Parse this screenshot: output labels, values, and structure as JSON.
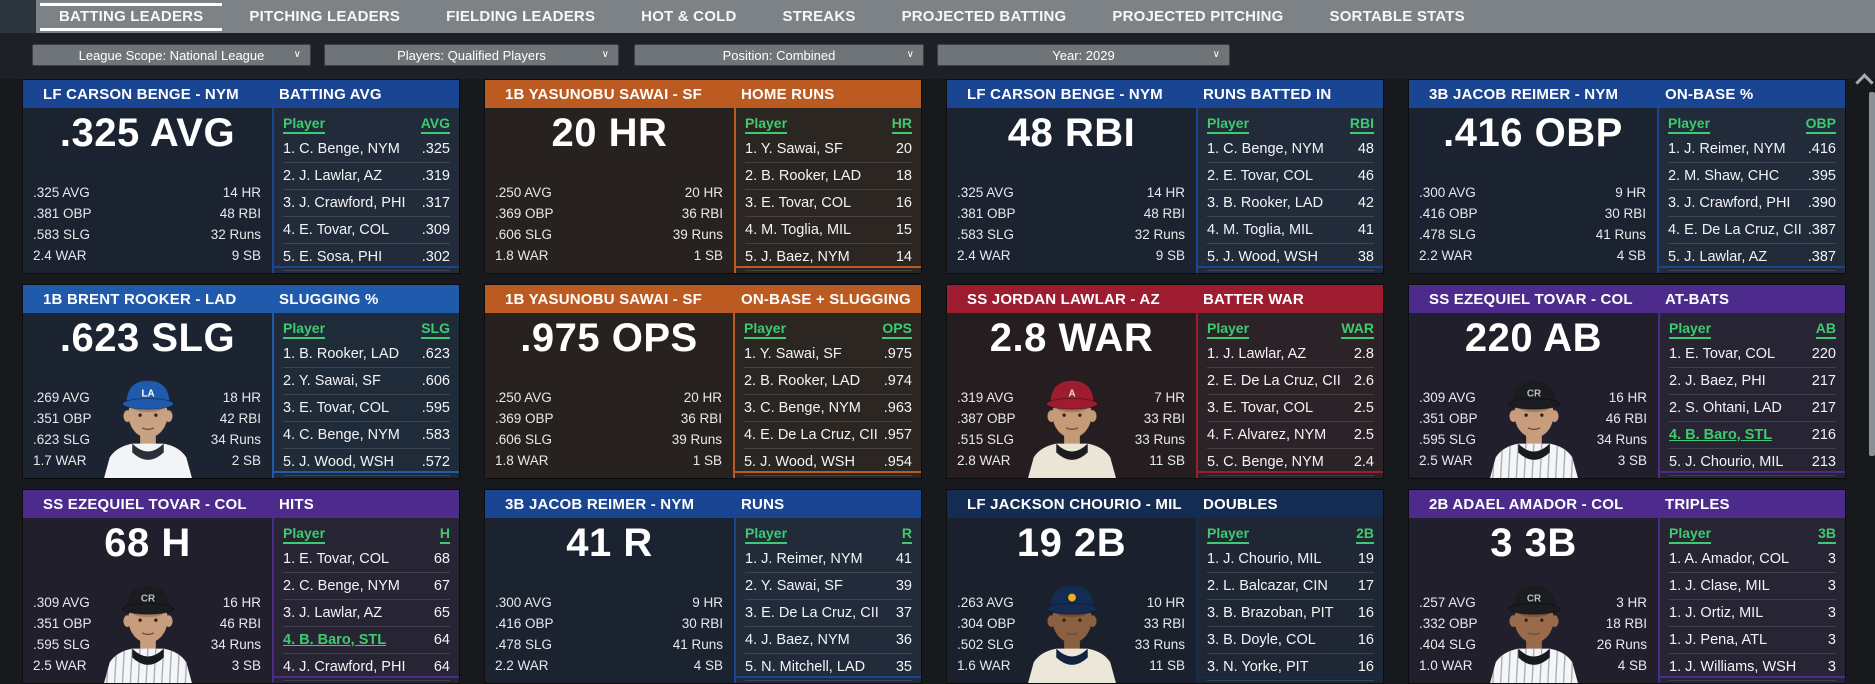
{
  "nav": {
    "tabs": [
      {
        "label": "BATTING LEADERS",
        "active": true
      },
      {
        "label": "PITCHING LEADERS",
        "active": false
      },
      {
        "label": "FIELDING LEADERS",
        "active": false
      },
      {
        "label": "HOT & COLD",
        "active": false
      },
      {
        "label": "STREAKS",
        "active": false
      },
      {
        "label": "PROJECTED BATTING",
        "active": false
      },
      {
        "label": "PROJECTED PITCHING",
        "active": false
      },
      {
        "label": "SORTABLE STATS",
        "active": false
      }
    ]
  },
  "filters": [
    {
      "label": "League Scope: National League"
    },
    {
      "label": "Players: Qualified Players"
    },
    {
      "label": "Position: Combined"
    },
    {
      "label": "Year: 2029"
    }
  ],
  "icons": {
    "dropdown_chevron": "∨"
  },
  "colors": {
    "highlight_green": "#3ecb70"
  },
  "list_player_label": "Player",
  "cards": [
    {
      "player": "LF CARSON BENGE - NYM",
      "category": "BATTING AVG",
      "big": ".325 AVG",
      "abbr": "AVG",
      "accent": "#1a4593",
      "body_bg": "#1b2330",
      "list_bg": "#212b39",
      "stats_left": [
        ".325 AVG",
        ".381 OBP",
        ".583 SLG",
        "2.4 WAR"
      ],
      "stats_right": [
        "14 HR",
        "48 RBI",
        "32 Runs",
        "9 SB"
      ],
      "leaders": [
        {
          "name": "1. C. Benge, NYM",
          "value": ".325"
        },
        {
          "name": "2. J. Lawlar, AZ",
          "value": ".319"
        },
        {
          "name": "3. J. Crawford, PHI",
          "value": ".317"
        },
        {
          "name": "4. E. Tovar, COL",
          "value": ".309"
        },
        {
          "name": "5. E. Sosa, PHI",
          "value": ".302"
        }
      ],
      "photo": null
    },
    {
      "player": "1B YASUNOBU SAWAI - SF",
      "category": "HOME RUNS",
      "big": "20 HR",
      "abbr": "HR",
      "accent": "#bc5b21",
      "body_bg": "#272220",
      "list_bg": "#2c2623",
      "stats_left": [
        ".250 AVG",
        ".369 OBP",
        ".606 SLG",
        "1.8 WAR"
      ],
      "stats_right": [
        "20 HR",
        "36 RBI",
        "39 Runs",
        "1 SB"
      ],
      "leaders": [
        {
          "name": "1. Y. Sawai, SF",
          "value": "20"
        },
        {
          "name": "2. B. Rooker, LAD",
          "value": "18"
        },
        {
          "name": "3. E. Tovar, COL",
          "value": "16"
        },
        {
          "name": "4. M. Toglia, MIL",
          "value": "15"
        },
        {
          "name": "5. J. Baez, NYM",
          "value": "14"
        }
      ],
      "photo": null
    },
    {
      "player": "LF CARSON BENGE - NYM",
      "category": "RUNS BATTED IN",
      "big": "48 RBI",
      "abbr": "RBI",
      "accent": "#1a4593",
      "body_bg": "#1b2330",
      "list_bg": "#212b39",
      "stats_left": [
        ".325 AVG",
        ".381 OBP",
        ".583 SLG",
        "2.4 WAR"
      ],
      "stats_right": [
        "14 HR",
        "48 RBI",
        "32 Runs",
        "9 SB"
      ],
      "leaders": [
        {
          "name": "1. C. Benge, NYM",
          "value": "48"
        },
        {
          "name": "2. E. Tovar, COL",
          "value": "46"
        },
        {
          "name": "3. B. Rooker, LAD",
          "value": "42"
        },
        {
          "name": "4. M. Toglia, MIL",
          "value": "41"
        },
        {
          "name": "5. J. Wood, WSH",
          "value": "38"
        }
      ],
      "photo": null
    },
    {
      "player": "3B JACOB REIMER - NYM",
      "category": "ON-BASE %",
      "big": ".416 OBP",
      "abbr": "OBP",
      "accent": "#1a4593",
      "body_bg": "#1b2330",
      "list_bg": "#212b39",
      "stats_left": [
        ".300 AVG",
        ".416 OBP",
        ".478 SLG",
        "2.2 WAR"
      ],
      "stats_right": [
        "9 HR",
        "30 RBI",
        "41 Runs",
        "4 SB"
      ],
      "leaders": [
        {
          "name": "1. J. Reimer, NYM",
          "value": ".416"
        },
        {
          "name": "2. M. Shaw, CHC",
          "value": ".395"
        },
        {
          "name": "3. J. Crawford, PHI",
          "value": ".390"
        },
        {
          "name": "4. E. De La Cruz, CII",
          "value": ".387"
        },
        {
          "name": "5. J. Lawlar, AZ",
          "value": ".387"
        }
      ],
      "photo": null
    },
    {
      "player": "1B BRENT ROOKER - LAD",
      "category": "SLUGGING %",
      "big": ".623 SLG",
      "abbr": "SLG",
      "accent": "#1f5aac",
      "body_bg": "#1b2430",
      "list_bg": "#202b39",
      "stats_left": [
        ".269 AVG",
        ".351 OBP",
        ".623 SLG",
        "1.7 WAR"
      ],
      "stats_right": [
        "18 HR",
        "42 RBI",
        "34 Runs",
        "2 SB"
      ],
      "leaders": [
        {
          "name": "1. B. Rooker, LAD",
          "value": ".623"
        },
        {
          "name": "2. Y. Sawai, SF",
          "value": ".606"
        },
        {
          "name": "3. E. Tovar, COL",
          "value": ".595"
        },
        {
          "name": "4. C. Benge, NYM",
          "value": ".583"
        },
        {
          "name": "5. J. Wood, WSH",
          "value": ".572"
        }
      ],
      "photo": {
        "cap": "#1f5aac",
        "jersey": "#f3f4f6",
        "undershirt": "#2a3038",
        "skin": "#c9a183",
        "pinstripes": false,
        "logo_text": "LA",
        "logo_color": "#ffffff"
      }
    },
    {
      "player": "1B YASUNOBU SAWAI - SF",
      "category": "ON-BASE + SLUGGING",
      "big": ".975 OPS",
      "abbr": "OPS",
      "accent": "#bc5b21",
      "body_bg": "#272220",
      "list_bg": "#2c2623",
      "stats_left": [
        ".250 AVG",
        ".369 OBP",
        ".606 SLG",
        "1.8 WAR"
      ],
      "stats_right": [
        "20 HR",
        "36 RBI",
        "39 Runs",
        "1 SB"
      ],
      "leaders": [
        {
          "name": "1. Y. Sawai, SF",
          "value": ".975"
        },
        {
          "name": "2. B. Rooker, LAD",
          "value": ".974"
        },
        {
          "name": "3. C. Benge, NYM",
          "value": ".963"
        },
        {
          "name": "4. E. De La Cruz, CII",
          "value": ".957"
        },
        {
          "name": "5. J. Wood, WSH",
          "value": ".954"
        }
      ],
      "photo": null
    },
    {
      "player": "SS JORDAN LAWLAR - AZ",
      "category": "BATTER WAR",
      "big": "2.8 WAR",
      "abbr": "WAR",
      "accent": "#9d1c2f",
      "body_bg": "#251d20",
      "list_bg": "#2b2327",
      "stats_left": [
        ".319 AVG",
        ".387 OBP",
        ".515 SLG",
        "2.8 WAR"
      ],
      "stats_right": [
        "7 HR",
        "33 RBI",
        "33 Runs",
        "11 SB"
      ],
      "leaders": [
        {
          "name": "1. J. Lawlar, AZ",
          "value": "2.8"
        },
        {
          "name": "2. E. De La Cruz, CII",
          "value": "2.6"
        },
        {
          "name": "3. E. Tovar, COL",
          "value": "2.5"
        },
        {
          "name": "4. F. Alvarez, NYM",
          "value": "2.5"
        },
        {
          "name": "5. C. Benge, NYM",
          "value": "2.4"
        }
      ],
      "photo": {
        "cap": "#9d1c2f",
        "jersey": "#ece4d4",
        "undershirt": "#1c1c1e",
        "skin": "#c49a77",
        "pinstripes": false,
        "logo_text": "A",
        "logo_color": "#e8e2d8"
      }
    },
    {
      "player": "SS EZEQUIEL TOVAR - COL",
      "category": "AT-BATS",
      "big": "220 AB",
      "abbr": "AB",
      "accent": "#4c2b8c",
      "body_bg": "#221f2c",
      "list_bg": "#272434",
      "stats_left": [
        ".309 AVG",
        ".351 OBP",
        ".595 SLG",
        "2.5 WAR"
      ],
      "stats_right": [
        "16 HR",
        "46 RBI",
        "34 Runs",
        "3 SB"
      ],
      "leaders": [
        {
          "name": "1. E. Tovar, COL",
          "value": "220"
        },
        {
          "name": "2. J. Baez, PHI",
          "value": "217"
        },
        {
          "name": "2. S. Ohtani, LAD",
          "value": "217"
        },
        {
          "name": "4. B. Baro, STL",
          "value": "216",
          "highlight": true
        },
        {
          "name": "5. J. Chourio, MIL",
          "value": "213"
        }
      ],
      "photo": {
        "cap": "#1b1c1f",
        "jersey": "#f4f5f7",
        "undershirt": "#191a1d",
        "skin": "#c79d7d",
        "pinstripes": true,
        "logo_text": "CR",
        "logo_color": "#b9bcc9"
      }
    },
    {
      "player": "SS EZEQUIEL TOVAR - COL",
      "category": "HITS",
      "big": "68 H",
      "abbr": "H",
      "accent": "#4c2b8c",
      "body_bg": "#221f2c",
      "list_bg": "#272434",
      "stats_left": [
        ".309 AVG",
        ".351 OBP",
        ".595 SLG",
        "2.5 WAR"
      ],
      "stats_right": [
        "16 HR",
        "46 RBI",
        "34 Runs",
        "3 SB"
      ],
      "leaders": [
        {
          "name": "1. E. Tovar, COL",
          "value": "68"
        },
        {
          "name": "2. C. Benge, NYM",
          "value": "67"
        },
        {
          "name": "3. J. Lawlar, AZ",
          "value": "65"
        },
        {
          "name": "4. B. Baro, STL",
          "value": "64",
          "highlight": true
        },
        {
          "name": "4. J. Crawford, PHI",
          "value": "64"
        }
      ],
      "photo": {
        "cap": "#1b1c1f",
        "jersey": "#f4f5f7",
        "undershirt": "#191a1d",
        "skin": "#c79d7d",
        "pinstripes": true,
        "logo_text": "CR",
        "logo_color": "#b9bcc9"
      }
    },
    {
      "player": "3B JACOB REIMER - NYM",
      "category": "RUNS",
      "big": "41 R",
      "abbr": "R",
      "accent": "#1a4593",
      "body_bg": "#1b2330",
      "list_bg": "#212b39",
      "stats_left": [
        ".300 AVG",
        ".416 OBP",
        ".478 SLG",
        "2.2 WAR"
      ],
      "stats_right": [
        "9 HR",
        "30 RBI",
        "41 Runs",
        "4 SB"
      ],
      "leaders": [
        {
          "name": "1. J. Reimer, NYM",
          "value": "41"
        },
        {
          "name": "2. Y. Sawai, SF",
          "value": "39"
        },
        {
          "name": "3. E. De La Cruz, CII",
          "value": "37"
        },
        {
          "name": "4. J. Baez, NYM",
          "value": "36"
        },
        {
          "name": "5. N. Mitchell, LAD",
          "value": "35"
        }
      ],
      "photo": null
    },
    {
      "player": "LF JACKSON CHOURIO - MIL",
      "category": "DOUBLES",
      "big": "19 2B",
      "abbr": "2B",
      "accent": "#142c52",
      "body_bg": "#1b212c",
      "list_bg": "#202734",
      "stats_left": [
        ".263 AVG",
        ".304 OBP",
        ".502 SLG",
        "1.6 WAR"
      ],
      "stats_right": [
        "10 HR",
        "33 RBI",
        "33 Runs",
        "11 SB"
      ],
      "leaders": [
        {
          "name": "1. J. Chourio, MIL",
          "value": "19"
        },
        {
          "name": "2. L. Balcazar, CIN",
          "value": "17"
        },
        {
          "name": "3. B. Brazoban, PIT",
          "value": "16"
        },
        {
          "name": "3. B. Doyle, COL",
          "value": "16"
        },
        {
          "name": "3. N. Yorke, PIT",
          "value": "16"
        }
      ],
      "photo": {
        "cap": "#142c52",
        "jersey": "#ede7d9",
        "undershirt": "#13233f",
        "skin": "#8a5f42",
        "pinstripes": false,
        "logo_text": "",
        "logo_color": "#e8b11e"
      }
    },
    {
      "player": "2B ADAEL AMADOR - COL",
      "category": "TRIPLES",
      "big": "3 3B",
      "abbr": "3B",
      "accent": "#4c2b8c",
      "body_bg": "#221f2c",
      "list_bg": "#272434",
      "stats_left": [
        ".257 AVG",
        ".332 OBP",
        ".404 SLG",
        "1.0 WAR"
      ],
      "stats_right": [
        "3 HR",
        "18 RBI",
        "26 Runs",
        "4 SB"
      ],
      "leaders": [
        {
          "name": "1. A. Amador, COL",
          "value": "3"
        },
        {
          "name": "1. J. Clase, MIL",
          "value": "3"
        },
        {
          "name": "1. J. Ortiz, MIL",
          "value": "3"
        },
        {
          "name": "1. J. Pena, ATL",
          "value": "3"
        },
        {
          "name": "1. J. Williams, WSH",
          "value": "3"
        }
      ],
      "photo": {
        "cap": "#1b1c1f",
        "jersey": "#f4f5f7",
        "undershirt": "#191a1d",
        "skin": "#9a6b4a",
        "pinstripes": true,
        "logo_text": "CR",
        "logo_color": "#b9bcc9"
      }
    }
  ]
}
